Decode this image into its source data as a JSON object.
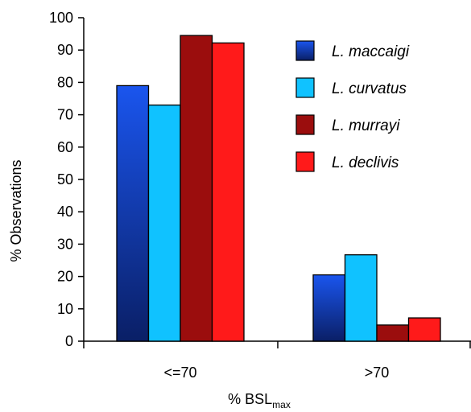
{
  "chart_data": {
    "type": "bar",
    "categories": [
      "<=70",
      ">70"
    ],
    "series": [
      {
        "name": "L. maccaigi",
        "values": [
          79,
          20.5
        ],
        "color_light": "#1a55ee",
        "color_dark": "#0a1f66"
      },
      {
        "name": "L. curvatus",
        "values": [
          73,
          26.7
        ],
        "color_light": "#10c2ff",
        "color_dark": "#10c2ff"
      },
      {
        "name": "L. murrayi",
        "values": [
          94.5,
          5
        ],
        "color_light": "#9b0d0d",
        "color_dark": "#9b0d0d"
      },
      {
        "name": "L. declivis",
        "values": [
          92.2,
          7.2
        ],
        "color_light": "#ff1a1a",
        "color_dark": "#ff1a1a"
      }
    ],
    "ylabel": "% Observations",
    "xlabel_main": "% BSL",
    "xlabel_sub": "max",
    "ylim": [
      0,
      100
    ],
    "yticks": [
      "0",
      "10",
      "20",
      "30",
      "40",
      "50",
      "60",
      "70",
      "80",
      "90",
      "100"
    ],
    "grid": false,
    "legend_position": "top-right"
  }
}
